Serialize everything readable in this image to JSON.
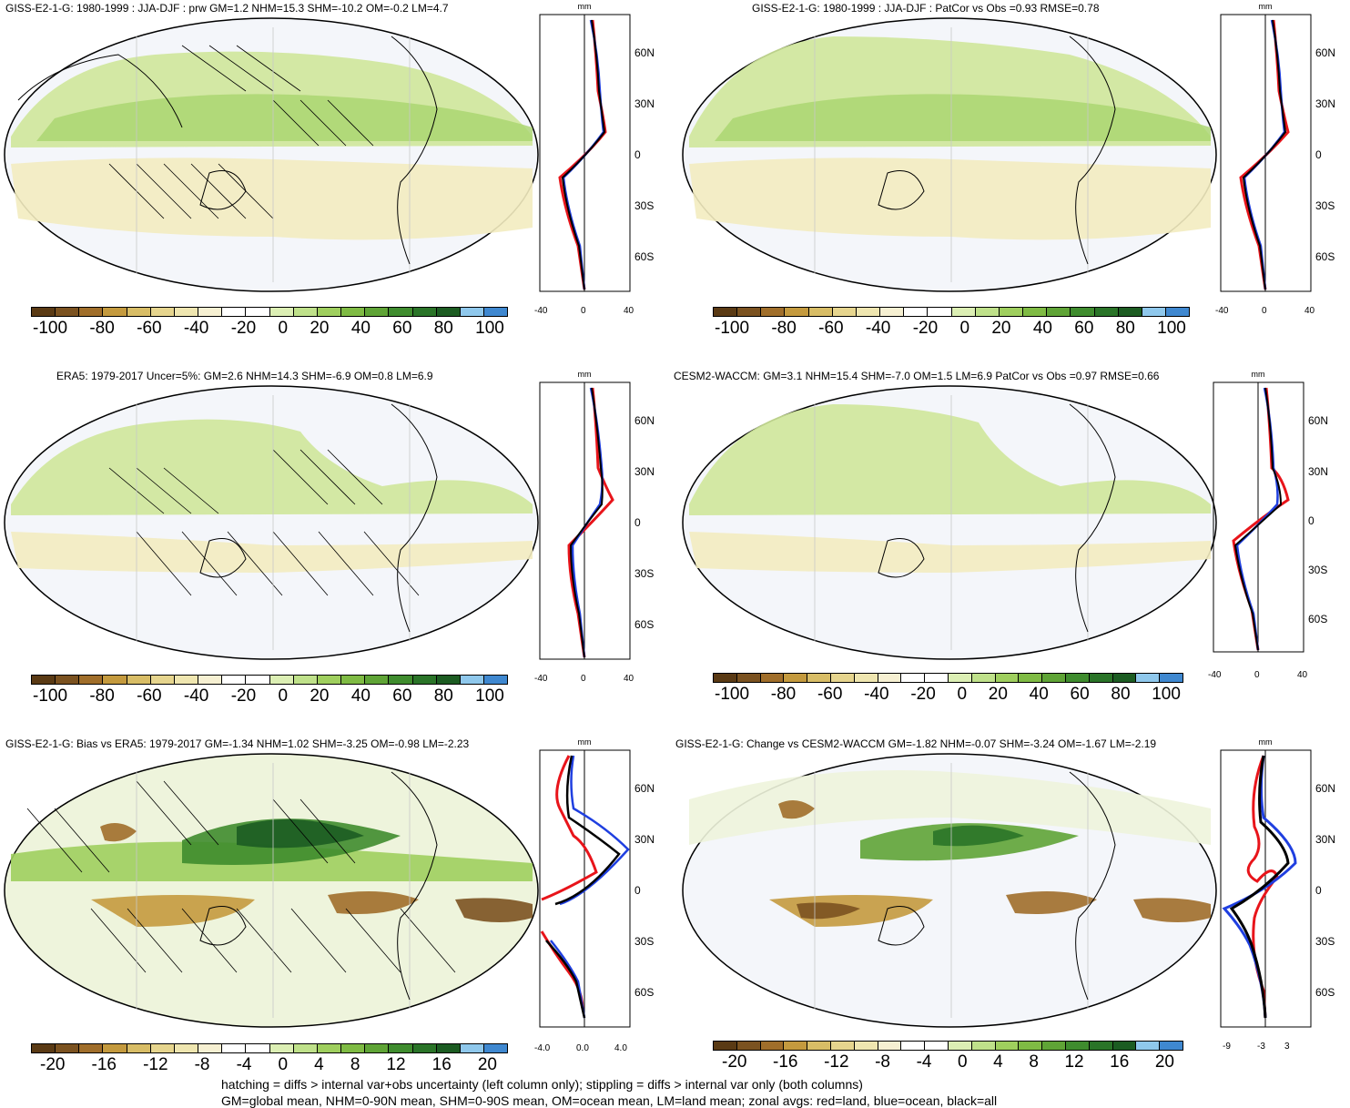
{
  "panels": [
    {
      "title": "GISS-E2-1-G: 1980-1999 : JJA-DJF : prw GM=1.2 NHM=15.3 SHM=-10.2 OM=-0.2 LM=4.7",
      "zonal_xticks": [
        "-40",
        "0",
        "40"
      ],
      "cbar_labels": [
        "-100",
        "-80",
        "-60",
        "-40",
        "-20",
        "0",
        "20",
        "40",
        "60",
        "80",
        "100"
      ]
    },
    {
      "title": "GISS-E2-1-G: 1980-1999 : JJA-DJF : PatCor vs Obs =0.93 RMSE=0.78",
      "zonal_xticks": [
        "-40",
        "0",
        "40"
      ],
      "cbar_labels": [
        "-100",
        "-80",
        "-60",
        "-40",
        "-20",
        "0",
        "20",
        "40",
        "60",
        "80",
        "100"
      ]
    },
    {
      "title": "ERA5: 1979-2017 Uncer=5%: GM=2.6 NHM=14.3 SHM=-6.9 OM=0.8 LM=6.9",
      "zonal_xticks": [
        "-40",
        "0",
        "40"
      ],
      "cbar_labels": [
        "-100",
        "-80",
        "-60",
        "-40",
        "-20",
        "0",
        "20",
        "40",
        "60",
        "80",
        "100"
      ]
    },
    {
      "title": "CESM2-WACCM: GM=3.1 NHM=15.4 SHM=-7.0 OM=1.5 LM=6.9 PatCor vs Obs =0.97 RMSE=0.66",
      "zonal_xticks": [
        "-40",
        "0",
        "40"
      ],
      "cbar_labels": [
        "-100",
        "-80",
        "-60",
        "-40",
        "-20",
        "0",
        "20",
        "40",
        "60",
        "80",
        "100"
      ]
    },
    {
      "title": "GISS-E2-1-G: Bias vs ERA5: 1979-2017 GM=-1.34 NHM=1.02 SHM=-3.25 OM=-0.98 LM=-2.23",
      "zonal_xticks": [
        "-4.0",
        "0.0",
        "4.0"
      ],
      "cbar_labels": [
        "-20",
        "-16",
        "-12",
        "-8",
        "-4",
        "0",
        "4",
        "8",
        "12",
        "16",
        "20"
      ]
    },
    {
      "title": "GISS-E2-1-G: Change vs CESM2-WACCM GM=-1.82 NHM=-0.07 SHM=-3.24 OM=-1.67 LM=-2.19",
      "zonal_xticks": [
        "-9",
        "-3",
        "3"
      ],
      "cbar_labels": [
        "-20",
        "-16",
        "-12",
        "-8",
        "-4",
        "0",
        "4",
        "8",
        "12",
        "16",
        "20"
      ]
    }
  ],
  "zonal_unit": "mm",
  "lat_ticks": [
    "60N",
    "30N",
    "0",
    "30S",
    "60S"
  ],
  "colorbar_colors": [
    "#5a3a14",
    "#7b5220",
    "#a06e2a",
    "#c49a3e",
    "#d8bd66",
    "#e6d58e",
    "#efe6b0",
    "#f6f0d2",
    "#ffffff",
    "#ffffff",
    "#dcefb4",
    "#bfe18a",
    "#9fcf5e",
    "#7fbb44",
    "#5fa436",
    "#3f8c2e",
    "#2a7428",
    "#1c5c22",
    "#8fc8ec",
    "#3f88d0"
  ],
  "footer": {
    "line1": "hatching = diffs > internal var+obs uncertainty (left column only); stippling = diffs > internal var only (both columns)",
    "line2": "GM=global mean, NHM=0-90N mean, SHM=0-90S mean, OM=ocean mean, LM=land mean; zonal avgs: red=land, blue=ocean, black=all"
  },
  "zonal_colors": {
    "land": "#e8141a",
    "ocean": "#1f3fe0",
    "all": "#000000"
  }
}
